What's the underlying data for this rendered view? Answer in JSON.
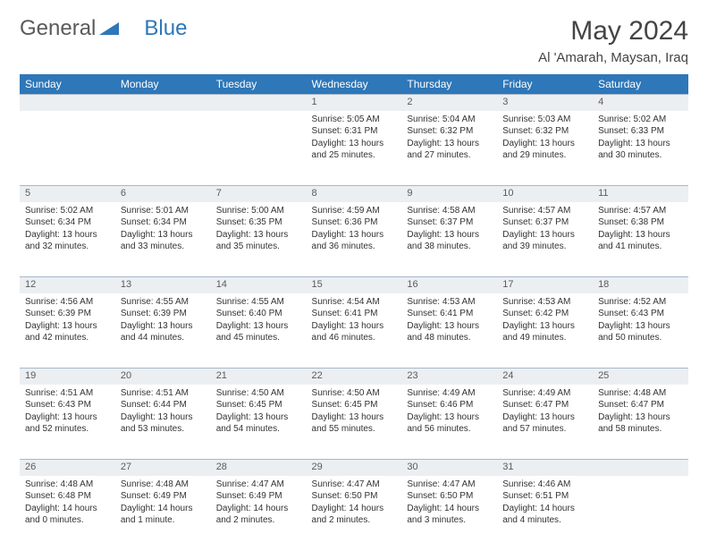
{
  "logo": {
    "text1": "General",
    "text2": "Blue"
  },
  "title": "May 2024",
  "location": "Al 'Amarah, Maysan, Iraq",
  "header_bg": "#2e77b8",
  "header_fg": "#ffffff",
  "daynum_bg": "#eceff1",
  "border_color": "#a8b8c8",
  "columns": [
    "Sunday",
    "Monday",
    "Tuesday",
    "Wednesday",
    "Thursday",
    "Friday",
    "Saturday"
  ],
  "weeks": [
    [
      null,
      null,
      null,
      {
        "d": "1",
        "sr": "5:05 AM",
        "ss": "6:31 PM",
        "dl": "13 hours and 25 minutes."
      },
      {
        "d": "2",
        "sr": "5:04 AM",
        "ss": "6:32 PM",
        "dl": "13 hours and 27 minutes."
      },
      {
        "d": "3",
        "sr": "5:03 AM",
        "ss": "6:32 PM",
        "dl": "13 hours and 29 minutes."
      },
      {
        "d": "4",
        "sr": "5:02 AM",
        "ss": "6:33 PM",
        "dl": "13 hours and 30 minutes."
      }
    ],
    [
      {
        "d": "5",
        "sr": "5:02 AM",
        "ss": "6:34 PM",
        "dl": "13 hours and 32 minutes."
      },
      {
        "d": "6",
        "sr": "5:01 AM",
        "ss": "6:34 PM",
        "dl": "13 hours and 33 minutes."
      },
      {
        "d": "7",
        "sr": "5:00 AM",
        "ss": "6:35 PM",
        "dl": "13 hours and 35 minutes."
      },
      {
        "d": "8",
        "sr": "4:59 AM",
        "ss": "6:36 PM",
        "dl": "13 hours and 36 minutes."
      },
      {
        "d": "9",
        "sr": "4:58 AM",
        "ss": "6:37 PM",
        "dl": "13 hours and 38 minutes."
      },
      {
        "d": "10",
        "sr": "4:57 AM",
        "ss": "6:37 PM",
        "dl": "13 hours and 39 minutes."
      },
      {
        "d": "11",
        "sr": "4:57 AM",
        "ss": "6:38 PM",
        "dl": "13 hours and 41 minutes."
      }
    ],
    [
      {
        "d": "12",
        "sr": "4:56 AM",
        "ss": "6:39 PM",
        "dl": "13 hours and 42 minutes."
      },
      {
        "d": "13",
        "sr": "4:55 AM",
        "ss": "6:39 PM",
        "dl": "13 hours and 44 minutes."
      },
      {
        "d": "14",
        "sr": "4:55 AM",
        "ss": "6:40 PM",
        "dl": "13 hours and 45 minutes."
      },
      {
        "d": "15",
        "sr": "4:54 AM",
        "ss": "6:41 PM",
        "dl": "13 hours and 46 minutes."
      },
      {
        "d": "16",
        "sr": "4:53 AM",
        "ss": "6:41 PM",
        "dl": "13 hours and 48 minutes."
      },
      {
        "d": "17",
        "sr": "4:53 AM",
        "ss": "6:42 PM",
        "dl": "13 hours and 49 minutes."
      },
      {
        "d": "18",
        "sr": "4:52 AM",
        "ss": "6:43 PM",
        "dl": "13 hours and 50 minutes."
      }
    ],
    [
      {
        "d": "19",
        "sr": "4:51 AM",
        "ss": "6:43 PM",
        "dl": "13 hours and 52 minutes."
      },
      {
        "d": "20",
        "sr": "4:51 AM",
        "ss": "6:44 PM",
        "dl": "13 hours and 53 minutes."
      },
      {
        "d": "21",
        "sr": "4:50 AM",
        "ss": "6:45 PM",
        "dl": "13 hours and 54 minutes."
      },
      {
        "d": "22",
        "sr": "4:50 AM",
        "ss": "6:45 PM",
        "dl": "13 hours and 55 minutes."
      },
      {
        "d": "23",
        "sr": "4:49 AM",
        "ss": "6:46 PM",
        "dl": "13 hours and 56 minutes."
      },
      {
        "d": "24",
        "sr": "4:49 AM",
        "ss": "6:47 PM",
        "dl": "13 hours and 57 minutes."
      },
      {
        "d": "25",
        "sr": "4:48 AM",
        "ss": "6:47 PM",
        "dl": "13 hours and 58 minutes."
      }
    ],
    [
      {
        "d": "26",
        "sr": "4:48 AM",
        "ss": "6:48 PM",
        "dl": "14 hours and 0 minutes."
      },
      {
        "d": "27",
        "sr": "4:48 AM",
        "ss": "6:49 PM",
        "dl": "14 hours and 1 minute."
      },
      {
        "d": "28",
        "sr": "4:47 AM",
        "ss": "6:49 PM",
        "dl": "14 hours and 2 minutes."
      },
      {
        "d": "29",
        "sr": "4:47 AM",
        "ss": "6:50 PM",
        "dl": "14 hours and 2 minutes."
      },
      {
        "d": "30",
        "sr": "4:47 AM",
        "ss": "6:50 PM",
        "dl": "14 hours and 3 minutes."
      },
      {
        "d": "31",
        "sr": "4:46 AM",
        "ss": "6:51 PM",
        "dl": "14 hours and 4 minutes."
      },
      null
    ]
  ],
  "labels": {
    "sunrise": "Sunrise:",
    "sunset": "Sunset:",
    "daylight": "Daylight:"
  }
}
